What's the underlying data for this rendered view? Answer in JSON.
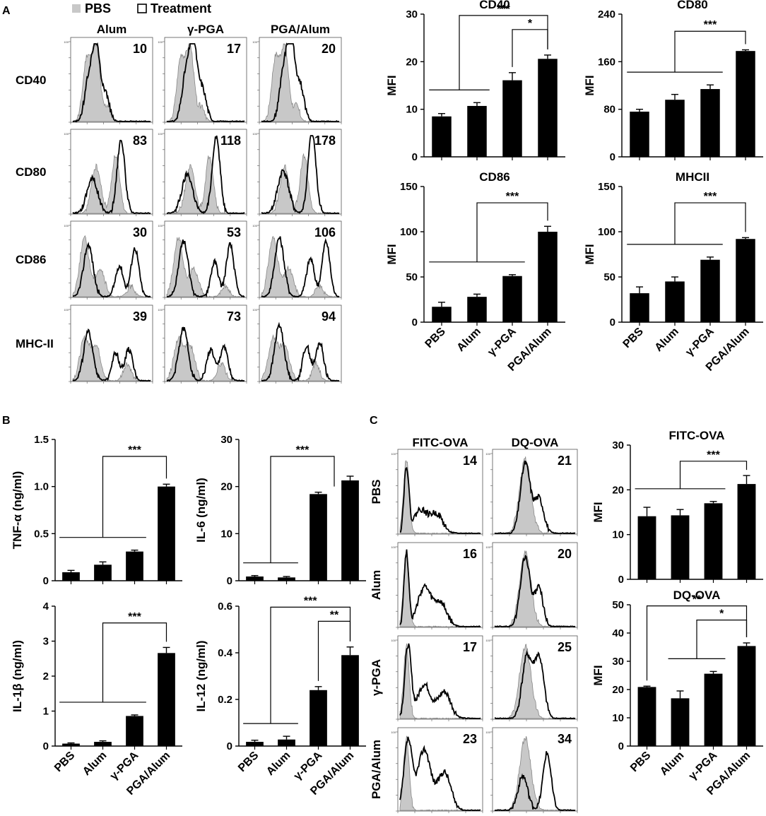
{
  "panels": {
    "a": "A",
    "b": "B",
    "c": "C"
  },
  "legend": {
    "pbs": "PBS",
    "treatment": "Treatment"
  },
  "colors": {
    "bar": "#000000",
    "fill": "#c8c8c8"
  },
  "hist_a": {
    "columns": [
      "Alum",
      "γ-PGA",
      "PGA/Alum"
    ],
    "rows": [
      "CD40",
      "CD80",
      "CD86",
      "MHC-II"
    ],
    "values": [
      [
        "10",
        "17",
        "20"
      ],
      [
        "83",
        "118",
        "178"
      ],
      [
        "30",
        "53",
        "106"
      ],
      [
        "39",
        "73",
        "94"
      ]
    ],
    "ytick": "100"
  },
  "hist_c": {
    "columns": [
      "FITC-OVA",
      "DQ-OVA"
    ],
    "rows": [
      "PBS",
      "Alum",
      "γ-PGA",
      "PGA/Alum"
    ],
    "values": [
      [
        "14",
        "21"
      ],
      [
        "16",
        "20"
      ],
      [
        "17",
        "25"
      ],
      [
        "23",
        "34"
      ]
    ]
  },
  "chart_data": [
    {
      "type": "bar",
      "panel": "A",
      "title": "CD40",
      "ylabel": "MFI",
      "categories": [
        "PBS",
        "Alum",
        "γ-PGA",
        "PGA/Alum"
      ],
      "values": [
        8.5,
        10.7,
        16.1,
        20.6
      ],
      "errors": [
        0.6,
        0.7,
        1.6,
        0.8
      ],
      "ylim": [
        0,
        30
      ],
      "yticks": [
        0,
        10,
        20,
        30
      ],
      "yticklabels": [
        "0",
        "10",
        "20",
        "30"
      ],
      "significance": [
        {
          "label": "***",
          "from": [
            0,
            1
          ],
          "to": 3
        },
        {
          "label": "*",
          "from": [
            2
          ],
          "to": 3
        }
      ]
    },
    {
      "type": "bar",
      "panel": "A",
      "title": "CD80",
      "ylabel": "MFI",
      "categories": [
        "PBS",
        "Alum",
        "γ-PGA",
        "PGA/Alum"
      ],
      "values": [
        76,
        96,
        114,
        178
      ],
      "errors": [
        4,
        9,
        7,
        2
      ],
      "ylim": [
        0,
        240
      ],
      "yticks": [
        0,
        80,
        160,
        240
      ],
      "yticklabels": [
        "0",
        "80",
        "160",
        "240"
      ],
      "significance": [
        {
          "label": "***",
          "from": [
            0,
            1,
            2
          ],
          "to": 3
        }
      ]
    },
    {
      "type": "bar",
      "panel": "A",
      "title": "CD86",
      "ylabel": "MFI",
      "categories": [
        "PBS",
        "Alum",
        "γ-PGA",
        "PGA/Alum"
      ],
      "values": [
        17,
        28,
        51,
        100
      ],
      "errors": [
        5,
        3,
        1.5,
        6
      ],
      "ylim": [
        0,
        150
      ],
      "yticks": [
        0,
        50,
        100,
        150
      ],
      "yticklabels": [
        "0",
        "50",
        "100",
        "150"
      ],
      "significance": [
        {
          "label": "***",
          "from": [
            0,
            1,
            2
          ],
          "to": 3
        }
      ]
    },
    {
      "type": "bar",
      "panel": "A",
      "title": "MHCII",
      "ylabel": "MFI",
      "categories": [
        "PBS",
        "Alum",
        "γ-PGA",
        "PGA/Alum"
      ],
      "values": [
        32,
        45,
        69,
        92
      ],
      "errors": [
        7,
        5,
        3,
        1.5
      ],
      "ylim": [
        0,
        150
      ],
      "yticks": [
        0,
        50,
        100,
        150
      ],
      "yticklabels": [
        "0",
        "50",
        "100",
        "150"
      ],
      "significance": [
        {
          "label": "***",
          "from": [
            0,
            1,
            2
          ],
          "to": 3
        }
      ]
    },
    {
      "type": "bar",
      "panel": "B",
      "title": "",
      "ylabel": "TNF-α (ng/ml)",
      "categories": [
        "PBS",
        "Alum",
        "γ-PGA",
        "PGA/Alum"
      ],
      "values": [
        0.09,
        0.17,
        0.31,
        1.0
      ],
      "errors": [
        0.02,
        0.03,
        0.015,
        0.025
      ],
      "ylim": [
        0,
        1.5
      ],
      "yticks": [
        0,
        0.5,
        1.0,
        1.5
      ],
      "yticklabels": [
        "0",
        "0.5",
        "1.0",
        "1.5"
      ],
      "significance": [
        {
          "label": "***",
          "from": [
            0,
            1,
            2
          ],
          "to": 3
        }
      ]
    },
    {
      "type": "bar",
      "panel": "B",
      "title": "",
      "ylabel": "IL-6 (ng/ml)",
      "categories": [
        "PBS",
        "Alum",
        "γ-PGA",
        "PGA/Alum"
      ],
      "values": [
        0.9,
        0.7,
        18.4,
        21.3
      ],
      "errors": [
        0.2,
        0.2,
        0.4,
        0.9
      ],
      "ylim": [
        0,
        30
      ],
      "yticks": [
        0,
        10,
        20,
        30
      ],
      "yticklabels": [
        "0",
        "10",
        "20",
        "30"
      ],
      "significance": [
        {
          "label": "***",
          "from": [
            0,
            1
          ],
          "to": [
            2,
            3
          ]
        }
      ]
    },
    {
      "type": "bar",
      "panel": "B",
      "title": "",
      "ylabel": "IL-1β (ng/ml)",
      "categories": [
        "PBS",
        "Alum",
        "γ-PGA",
        "PGA/Alum"
      ],
      "values": [
        0.07,
        0.12,
        0.86,
        2.66
      ],
      "errors": [
        0.02,
        0.03,
        0.03,
        0.16
      ],
      "ylim": [
        0,
        4
      ],
      "yticks": [
        0,
        1,
        2,
        3,
        4
      ],
      "yticklabels": [
        "0",
        "1",
        "2",
        "3",
        "4"
      ],
      "significance": [
        {
          "label": "***",
          "from": [
            0,
            1,
            2
          ],
          "to": 3
        }
      ]
    },
    {
      "type": "bar",
      "panel": "B",
      "title": "",
      "ylabel": "IL-12 (ng/ml)",
      "categories": [
        "PBS",
        "Alum",
        "γ-PGA",
        "PGA/Alum"
      ],
      "values": [
        0.018,
        0.028,
        0.24,
        0.39
      ],
      "errors": [
        0.007,
        0.014,
        0.015,
        0.035
      ],
      "ylim": [
        0,
        0.6
      ],
      "yticks": [
        0,
        0.2,
        0.4,
        0.6
      ],
      "yticklabels": [
        "0",
        "0.2",
        "0.4",
        "0.6"
      ],
      "significance": [
        {
          "label": "***",
          "from": [
            0,
            1
          ],
          "to": 3
        },
        {
          "label": "**",
          "from": [
            2
          ],
          "to": 3
        }
      ]
    },
    {
      "type": "bar",
      "panel": "C",
      "title": "FITC-OVA",
      "ylabel": "MFI",
      "categories": [
        "PBS",
        "Alum",
        "γ-PGA",
        "PGA/Alum"
      ],
      "values": [
        14.1,
        14.3,
        17.0,
        21.3
      ],
      "errors": [
        2.0,
        1.3,
        0.4,
        1.9
      ],
      "ylim": [
        0,
        30
      ],
      "yticks": [
        0,
        10,
        20,
        30
      ],
      "yticklabels": [
        "0",
        "10",
        "20",
        "30"
      ],
      "significance": [
        {
          "label": "***",
          "from": [
            0,
            1,
            2
          ],
          "to": 3
        }
      ]
    },
    {
      "type": "bar",
      "panel": "C",
      "title": "DQ-OVA",
      "ylabel": "MFI",
      "categories": [
        "PBS",
        "Alum",
        "γ-PGA",
        "PGA/Alum"
      ],
      "values": [
        20.9,
        16.9,
        25.6,
        35.4
      ],
      "errors": [
        0.3,
        2.6,
        0.8,
        1.1
      ],
      "ylim": [
        0,
        50
      ],
      "yticks": [
        0,
        10,
        20,
        30,
        40,
        50
      ],
      "yticklabels": [
        "0",
        "10",
        "20",
        "30",
        "40",
        "50"
      ],
      "significance": [
        {
          "label": "**",
          "from": [
            0
          ],
          "to": 3
        },
        {
          "label": "*",
          "from": [
            1,
            2
          ],
          "to": 3
        }
      ]
    }
  ]
}
